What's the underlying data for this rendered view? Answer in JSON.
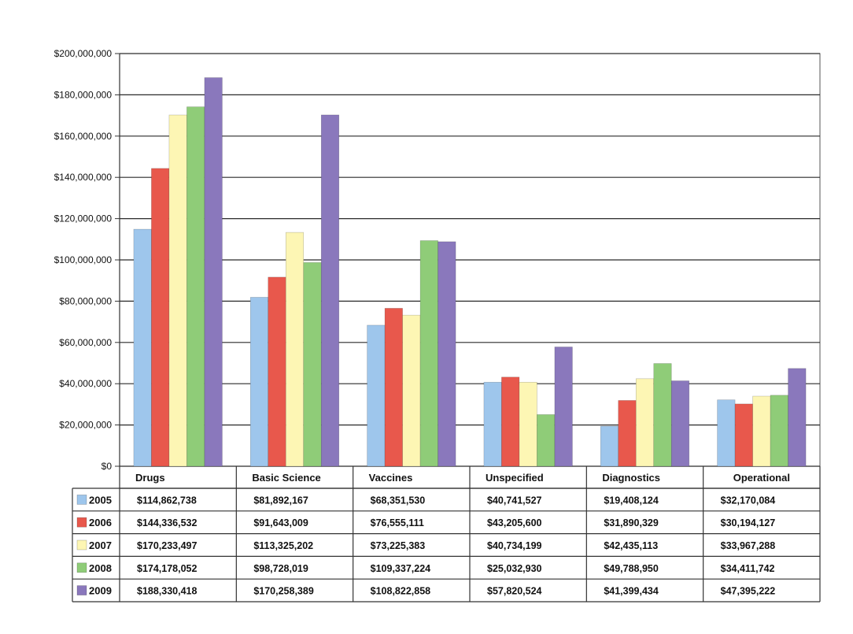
{
  "chart_data": {
    "type": "bar",
    "title": "",
    "xlabel": "",
    "ylabel": "",
    "ylim": [
      0,
      200000000
    ],
    "yticks": [
      0,
      20000000,
      40000000,
      60000000,
      80000000,
      100000000,
      120000000,
      140000000,
      160000000,
      180000000,
      200000000
    ],
    "ytick_labels": [
      "$0",
      "$20,000,000",
      "$40,000,000",
      "$60,000,000",
      "$80,000,000",
      "$100,000,000",
      "$120,000,000",
      "$140,000,000",
      "$160,000,000",
      "$180,000,000",
      "$200,000,000"
    ],
    "grid": true,
    "legend": "data table below chart",
    "categories": [
      "Drugs",
      "Basic Science",
      "Vaccines",
      "Unspecified",
      "Diagnostics",
      "Operational"
    ],
    "series": [
      {
        "name": "2005",
        "color": "#9ec6ec",
        "values": [
          114862738,
          81892167,
          68351530,
          40741527,
          19408124,
          32170084
        ],
        "labels": [
          "$114,862,738",
          "$81,892,167",
          "$68,351,530",
          "$40,741,527",
          "$19,408,124",
          "$32,170,084"
        ]
      },
      {
        "name": "2006",
        "color": "#e8584c",
        "values": [
          144336532,
          91643009,
          76555111,
          43205600,
          31890329,
          30194127
        ],
        "labels": [
          "$144,336,532",
          "$91,643,009",
          "$76,555,111",
          "$43,205,600",
          "$31,890,329",
          "$30,194,127"
        ]
      },
      {
        "name": "2007",
        "color": "#fdf6b4",
        "values": [
          170233497,
          113325202,
          73225383,
          40734199,
          42435113,
          33967288
        ],
        "labels": [
          "$170,233,497",
          "$113,325,202",
          "$73,225,383",
          "$40,734,199",
          "$42,435,113",
          "$33,967,288"
        ]
      },
      {
        "name": "2008",
        "color": "#8fcc78",
        "values": [
          174178052,
          98728019,
          109337224,
          25032930,
          49788950,
          34411742
        ],
        "labels": [
          "$174,178,052",
          "$98,728,019",
          "$109,337,224",
          "$25,032,930",
          "$49,788,950",
          "$34,411,742"
        ]
      },
      {
        "name": "2009",
        "color": "#8a78bc",
        "values": [
          188330418,
          170258389,
          108822858,
          57820524,
          41399434,
          47395222
        ],
        "labels": [
          "$188,330,418",
          "$170,258,389",
          "$108,822,858",
          "$57,820,524",
          "$41,399,434",
          "$47,395,222"
        ]
      }
    ]
  }
}
